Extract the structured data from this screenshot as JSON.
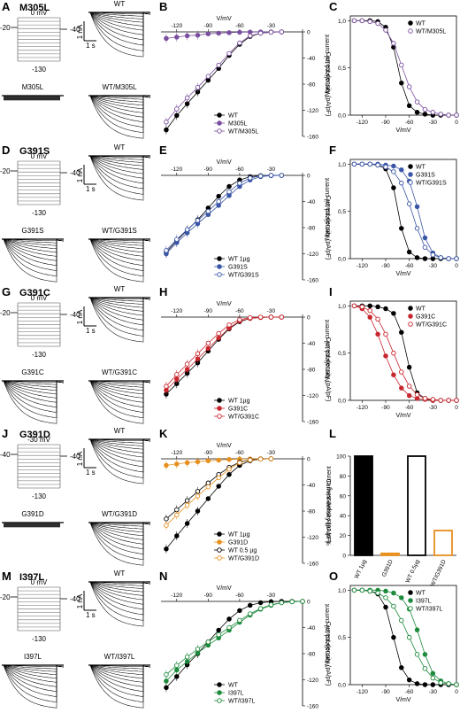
{
  "colors": {
    "black": "#000000",
    "purple": "#7a4fa0",
    "blue": "#3a56a6",
    "red": "#c8262e",
    "orange": "#e7901f",
    "green": "#1e8a3c",
    "gray": "#8a8a8a"
  },
  "rows": [
    {
      "labels": [
        "A",
        "B",
        "C"
      ],
      "mutant": "M305L",
      "protocol": {
        "hold": "-20",
        "step": "0 mV",
        "tail": "-40",
        "bottom": "-130"
      },
      "traces": {
        "wt": "WT",
        "mut": "M305L",
        "het": "WT/M305L",
        "scale_current": "1 nA",
        "scale_time": "1 s"
      },
      "mut_trace_style": "flat"
    },
    {
      "labels": [
        "D",
        "E",
        "F"
      ],
      "mutant": "G391S",
      "protocol": {
        "hold": "-20",
        "step": "0 mV",
        "tail": "-40",
        "bottom": "-130"
      },
      "traces": {
        "wt": "WT",
        "mut": "G391S",
        "het": "WT/G391S",
        "scale_current": "1 nA",
        "scale_time": "1 s"
      },
      "mut_trace_style": "normal"
    },
    {
      "labels": [
        "G",
        "H",
        "I"
      ],
      "mutant": "G391C",
      "protocol": {
        "hold": "-20",
        "step": "0 mV",
        "tail": "-40",
        "bottom": "-130"
      },
      "traces": {
        "wt": "WT",
        "mut": "G391C",
        "het": "WT/G391C",
        "scale_current": "1 nA",
        "scale_time": "1 s"
      },
      "mut_trace_style": "normal"
    },
    {
      "labels": [
        "J",
        "K",
        "L"
      ],
      "mutant": "G391D",
      "protocol": {
        "hold": "-40",
        "step": "-30 mV",
        "tail": "-40",
        "bottom": "-130"
      },
      "traces": {
        "wt": "WT",
        "mut": "G391D",
        "het": "WT/G391D",
        "scale_current": "1 nA",
        "scale_time": "1 s"
      },
      "mut_trace_style": "flat"
    },
    {
      "labels": [
        "M",
        "N",
        "O"
      ],
      "mutant": "I397L",
      "protocol": {
        "hold": "-20",
        "step": "0 mV",
        "tail": "-40",
        "bottom": "-130"
      },
      "traces": {
        "wt": "WT",
        "mut": "I397L",
        "het": "WT/I397L",
        "scale_current": "1 nA",
        "scale_time": "1 s"
      },
      "mut_trace_style": "normal"
    }
  ],
  "chart_data": [
    {
      "panel": "B",
      "type": "line",
      "xlabel": "V/mV",
      "ylabel": "Current density (pA/pF)",
      "xlim": [
        -135,
        0
      ],
      "ylim": [
        -160,
        0
      ],
      "xticks": [
        -120,
        -90,
        -60,
        -30,
        0
      ],
      "yticks": [
        0,
        -40,
        -80,
        -120,
        -160
      ],
      "x": [
        -130,
        -120,
        -110,
        -100,
        -90,
        -80,
        -70,
        -60,
        -50,
        -40,
        -30,
        -20
      ],
      "series": [
        {
          "name": "WT",
          "color": "black",
          "filled": true,
          "values": [
            -150,
            -128,
            -110,
            -92,
            -74,
            -56,
            -36,
            -19,
            -7,
            -2,
            -0.5,
            0
          ]
        },
        {
          "name": "M305L",
          "color": "purple",
          "filled": true,
          "values": [
            -10,
            -8,
            -6,
            -5,
            -3,
            -2,
            -1.2,
            -0.6,
            -0.3,
            -0.1,
            0,
            0
          ]
        },
        {
          "name": "WT/M305L",
          "color": "purple",
          "filled": false,
          "values": [
            -138,
            -118,
            -101,
            -85,
            -68,
            -51,
            -33,
            -17,
            -6,
            -2,
            -0.5,
            0
          ]
        }
      ],
      "legend": "bottom-right"
    },
    {
      "panel": "C",
      "type": "line",
      "xlabel": "V/mV",
      "ylabel": "Normalized tail current",
      "xlim": [
        -135,
        0
      ],
      "ylim": [
        0,
        1.05
      ],
      "xticks": [
        -120,
        -90,
        -60,
        -30,
        0
      ],
      "yticks": [
        0,
        0.5,
        1
      ],
      "ytick_labels": [
        "0,0",
        "0,5",
        "1,0"
      ],
      "x": [
        -130,
        -120,
        -110,
        -100,
        -90,
        -80,
        -70,
        -60,
        -50,
        -40,
        -30,
        -20,
        -10,
        0
      ],
      "series": [
        {
          "name": "WT",
          "color": "black",
          "filled": true,
          "values": [
            1,
            1,
            1,
            0.99,
            0.93,
            0.72,
            0.34,
            0.1,
            0.03,
            0.01,
            0,
            0,
            0,
            0
          ]
        },
        {
          "name": "WT/M305L",
          "color": "purple",
          "filled": false,
          "values": [
            1,
            1,
            0.99,
            0.97,
            0.9,
            0.76,
            0.53,
            0.3,
            0.14,
            0.06,
            0.03,
            0.01,
            0,
            0
          ]
        }
      ],
      "legend": "top-right"
    },
    {
      "panel": "E",
      "type": "line",
      "xlabel": "V/mV",
      "ylabel": "Current density (pA/pF)",
      "xlim": [
        -135,
        0
      ],
      "ylim": [
        -160,
        0
      ],
      "xticks": [
        -120,
        -90,
        -60,
        -30,
        0
      ],
      "yticks": [
        0,
        -40,
        -80,
        -120,
        -160
      ],
      "x": [
        -130,
        -120,
        -110,
        -100,
        -90,
        -80,
        -70,
        -60,
        -50,
        -40,
        -30,
        -20
      ],
      "series": [
        {
          "name": "WT 1µg",
          "color": "black",
          "filled": true,
          "values": [
            -118,
            -100,
            -84,
            -68,
            -50,
            -32,
            -17,
            -7,
            -2,
            -0.5,
            0,
            0
          ]
        },
        {
          "name": "G391S",
          "color": "blue",
          "filled": true,
          "values": [
            -120,
            -103,
            -88,
            -74,
            -60,
            -46,
            -31,
            -17,
            -7,
            -2,
            -0.5,
            0
          ]
        },
        {
          "name": "WT/G391S",
          "color": "blue",
          "filled": false,
          "values": [
            -115,
            -98,
            -83,
            -69,
            -55,
            -40,
            -25,
            -12,
            -4,
            -1,
            0,
            0
          ]
        }
      ],
      "legend": "bottom-right"
    },
    {
      "panel": "F",
      "type": "line",
      "xlabel": "V/mV",
      "ylabel": "Normalized tail current",
      "xlim": [
        -135,
        0
      ],
      "ylim": [
        0,
        1.05
      ],
      "xticks": [
        -120,
        -90,
        -60,
        -30,
        0
      ],
      "yticks": [
        0,
        0.5,
        1
      ],
      "ytick_labels": [
        "0,0",
        "0,5",
        "1,0"
      ],
      "x": [
        -130,
        -120,
        -110,
        -100,
        -90,
        -80,
        -70,
        -60,
        -50,
        -40,
        -30,
        -20,
        -10,
        0
      ],
      "series": [
        {
          "name": "WT",
          "color": "black",
          "filled": true,
          "values": [
            1,
            1,
            1,
            0.99,
            0.95,
            0.75,
            0.32,
            0.07,
            0.01,
            0,
            0,
            0,
            0,
            0
          ]
        },
        {
          "name": "G391S",
          "color": "blue",
          "filled": true,
          "values": [
            1,
            1,
            1,
            1,
            0.99,
            0.98,
            0.94,
            0.82,
            0.55,
            0.22,
            0.06,
            0.01,
            0,
            0
          ]
        },
        {
          "name": "WT/G391S",
          "color": "blue",
          "filled": false,
          "values": [
            1,
            1,
            1,
            0.99,
            0.97,
            0.92,
            0.8,
            0.58,
            0.32,
            0.12,
            0.04,
            0.01,
            0,
            0
          ]
        }
      ],
      "legend": "top-right"
    },
    {
      "panel": "H",
      "type": "line",
      "xlabel": "V/mV",
      "ylabel": "Current density (pA/pF)",
      "xlim": [
        -135,
        0
      ],
      "ylim": [
        -160,
        0
      ],
      "xticks": [
        -120,
        -90,
        -60,
        -30,
        0
      ],
      "yticks": [
        0,
        -40,
        -80,
        -120,
        -160
      ],
      "x": [
        -130,
        -120,
        -110,
        -100,
        -90,
        -80,
        -70,
        -60,
        -50,
        -40,
        -30,
        -20
      ],
      "series": [
        {
          "name": "WT 1µg",
          "color": "black",
          "filled": true,
          "values": [
            -118,
            -102,
            -86,
            -70,
            -52,
            -34,
            -18,
            -7,
            -2,
            -0.5,
            0,
            0
          ]
        },
        {
          "name": "G391C",
          "color": "red",
          "filled": true,
          "values": [
            -112,
            -95,
            -80,
            -64,
            -48,
            -32,
            -17,
            -6,
            -2,
            -0.5,
            0,
            0
          ]
        },
        {
          "name": "WT/G391C",
          "color": "red",
          "filled": false,
          "values": [
            -106,
            -88,
            -72,
            -56,
            -40,
            -25,
            -12,
            -4,
            -1,
            0,
            0,
            0
          ]
        }
      ],
      "legend": "bottom-right"
    },
    {
      "panel": "I",
      "type": "line",
      "xlabel": "V/mV",
      "ylabel": "Normalized tail current",
      "xlim": [
        -135,
        0
      ],
      "ylim": [
        0,
        1.05
      ],
      "xticks": [
        -120,
        -90,
        -60,
        -30,
        0
      ],
      "yticks": [
        0,
        0.5,
        1
      ],
      "ytick_labels": [
        "0,0",
        "0,5",
        "1,0"
      ],
      "x": [
        -130,
        -120,
        -110,
        -100,
        -90,
        -80,
        -70,
        -60,
        -50,
        -40,
        -30,
        -20,
        -10,
        0
      ],
      "series": [
        {
          "name": "WT",
          "color": "black",
          "filled": true,
          "values": [
            1,
            1,
            1,
            0.99,
            0.97,
            0.92,
            0.72,
            0.35,
            0.08,
            0.02,
            0,
            0,
            0,
            0
          ]
        },
        {
          "name": "G391C",
          "color": "red",
          "filled": true,
          "values": [
            1,
            0.97,
            0.88,
            0.7,
            0.47,
            0.27,
            0.13,
            0.05,
            0.02,
            0.01,
            0,
            0,
            0,
            0
          ]
        },
        {
          "name": "WT/G391C",
          "color": "red",
          "filled": false,
          "values": [
            1,
            0.99,
            0.95,
            0.86,
            0.7,
            0.5,
            0.3,
            0.15,
            0.06,
            0.02,
            0.01,
            0,
            0,
            0
          ]
        }
      ],
      "legend": "top-right"
    },
    {
      "panel": "K",
      "type": "line",
      "xlabel": "V/mV",
      "ylabel": "Current density (pA/pF)",
      "xlim": [
        -135,
        0
      ],
      "ylim": [
        -160,
        0
      ],
      "xticks": [
        -120,
        -90,
        -60,
        -30,
        0
      ],
      "yticks": [
        0,
        -40,
        -80,
        -120,
        -160
      ],
      "x": [
        -130,
        -120,
        -110,
        -100,
        -90,
        -80,
        -70,
        -60,
        -50,
        -40,
        -30
      ],
      "series": [
        {
          "name": "WT 1µg",
          "color": "black",
          "filled": true,
          "values": [
            -138,
            -118,
            -99,
            -80,
            -61,
            -42,
            -24,
            -10,
            -3,
            -0.5,
            0
          ]
        },
        {
          "name": "G391D",
          "color": "orange",
          "filled": true,
          "values": [
            -10,
            -8,
            -6,
            -4.5,
            -3,
            -2,
            -1,
            -0.5,
            -0.2,
            0,
            0
          ]
        },
        {
          "name": "WT 0.5 µg",
          "color": "black",
          "filled": false,
          "values": [
            -92,
            -78,
            -64,
            -50,
            -37,
            -24,
            -13,
            -5,
            -1.5,
            -0.3,
            0
          ]
        },
        {
          "name": "WT/G391D",
          "color": "orange",
          "filled": false,
          "values": [
            -102,
            -86,
            -71,
            -57,
            -43,
            -29,
            -16,
            -6,
            -2,
            -0.5,
            0
          ]
        }
      ],
      "legend": "bottom-right"
    },
    {
      "panel": "L",
      "type": "bar",
      "ylabel": "% of cells expressing current",
      "ylim": [
        0,
        100
      ],
      "yticks": [
        0,
        20,
        40,
        60,
        80,
        100
      ],
      "categories": [
        "WT 1µg",
        "G391D",
        "WT 0.5µg",
        "WT/G391D"
      ],
      "values": [
        100,
        2,
        100,
        25
      ],
      "fills": [
        "black",
        "orange",
        "white",
        "white"
      ],
      "strokes": [
        "black",
        "orange",
        "black",
        "orange"
      ]
    },
    {
      "panel": "N",
      "type": "line",
      "xlabel": "V/mV",
      "ylabel": "Current density (pA/pF)",
      "xlim": [
        -135,
        0
      ],
      "ylim": [
        -160,
        0
      ],
      "xticks": [
        -120,
        -90,
        -60,
        -30,
        0
      ],
      "yticks": [
        0,
        -40,
        -80,
        -120,
        -160
      ],
      "x": [
        -130,
        -120,
        -110,
        -100,
        -90,
        -80,
        -70,
        -60,
        -50,
        -40,
        -30,
        -20,
        -10,
        0
      ],
      "series": [
        {
          "name": "WT",
          "color": "black",
          "filled": true,
          "values": [
            -132,
            -115,
            -97,
            -80,
            -62,
            -44,
            -27,
            -14,
            -6,
            -2,
            -0.5,
            0,
            0,
            0
          ]
        },
        {
          "name": "I397L",
          "color": "green",
          "filled": true,
          "values": [
            -122,
            -105,
            -92,
            -79,
            -67,
            -56,
            -44,
            -32,
            -21,
            -12,
            -6,
            -2,
            -0.5,
            0
          ]
        },
        {
          "name": "WT/I397L",
          "color": "green",
          "filled": false,
          "values": [
            -112,
            -98,
            -85,
            -73,
            -62,
            -51,
            -40,
            -29,
            -19,
            -11,
            -5,
            -2,
            -0.5,
            0
          ]
        }
      ],
      "legend": "bottom-right"
    },
    {
      "panel": "O",
      "type": "line",
      "xlabel": "V/mV",
      "ylabel": "Normalized tail current",
      "xlim": [
        -135,
        0
      ],
      "ylim": [
        0,
        1.05
      ],
      "xticks": [
        -120,
        -90,
        -60,
        -30,
        0
      ],
      "yticks": [
        0,
        0.5,
        1
      ],
      "ytick_labels": [
        "0,0",
        "0,5",
        "1,0"
      ],
      "x": [
        -130,
        -120,
        -110,
        -100,
        -90,
        -80,
        -70,
        -60,
        -50,
        -40,
        -30,
        -20,
        -10,
        0
      ],
      "series": [
        {
          "name": "WT",
          "color": "black",
          "filled": true,
          "values": [
            1,
            1,
            0.99,
            0.96,
            0.82,
            0.5,
            0.18,
            0.05,
            0.01,
            0,
            0,
            0,
            0,
            0
          ]
        },
        {
          "name": "I397L",
          "color": "green",
          "filled": true,
          "values": [
            1,
            1,
            1,
            1,
            0.99,
            0.97,
            0.92,
            0.8,
            0.58,
            0.32,
            0.12,
            0.04,
            0.01,
            0
          ]
        },
        {
          "name": "WT/I397L",
          "color": "green",
          "filled": false,
          "values": [
            1,
            1,
            0.99,
            0.97,
            0.92,
            0.83,
            0.68,
            0.5,
            0.32,
            0.17,
            0.07,
            0.02,
            0.01,
            0
          ]
        }
      ],
      "legend": "top-right"
    }
  ]
}
